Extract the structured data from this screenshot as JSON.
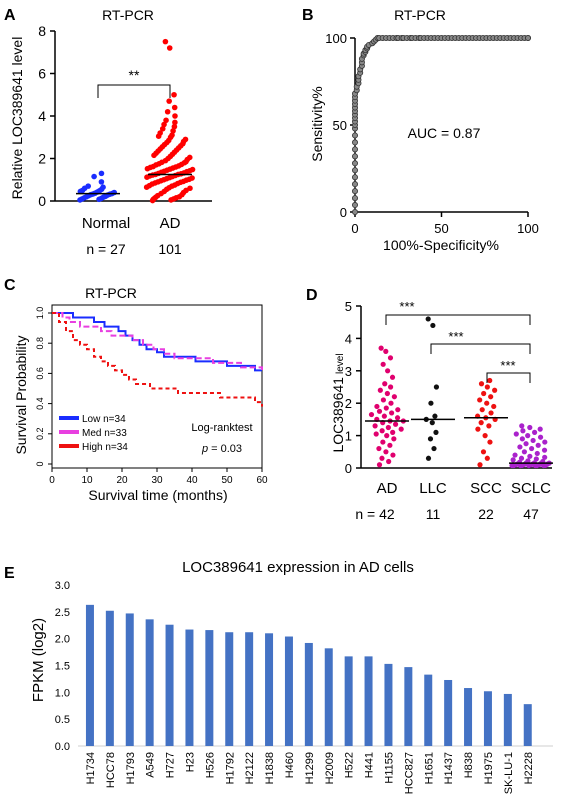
{
  "panels": {
    "A": {
      "letter": "A",
      "chart_data": {
        "type": "scatter",
        "title": "RT-PCR",
        "ylabel": "Relative LOC389641 level",
        "ylim": [
          0,
          8
        ],
        "yticks": [
          "0",
          "2",
          "4",
          "6",
          "8"
        ],
        "categories": [
          "Normal",
          "AD"
        ],
        "n_labels": [
          "n = 27",
          "101"
        ],
        "medians": [
          0.35,
          1.25
        ],
        "significance": "**",
        "colors": {
          "Normal": "#1a2dff",
          "AD": "#ff0000"
        },
        "series": [
          {
            "values": [
              0.05,
              0.08,
              0.1,
              0.12,
              0.15,
              0.18,
              0.2,
              0.22,
              0.25,
              0.28,
              0.3,
              0.32,
              0.33,
              0.35,
              0.37,
              0.4,
              0.42,
              0.45,
              0.48,
              0.5,
              0.55,
              0.6,
              0.65,
              0.7,
              0.9,
              1.15,
              1.3
            ]
          },
          {
            "values": [
              0.02,
              0.05,
              0.08,
              0.1,
              0.12,
              0.15,
              0.18,
              0.2,
              0.25,
              0.3,
              0.35,
              0.4,
              0.45,
              0.5,
              0.55,
              0.6,
              0.62,
              0.65,
              0.7,
              0.72,
              0.75,
              0.8,
              0.82,
              0.85,
              0.88,
              0.9,
              0.92,
              0.95,
              0.98,
              1.0,
              1.02,
              1.05,
              1.08,
              1.1,
              1.12,
              1.15,
              1.18,
              1.2,
              1.22,
              1.25,
              1.25,
              1.28,
              1.3,
              1.32,
              1.35,
              1.38,
              1.4,
              1.42,
              1.45,
              1.48,
              1.5,
              1.52,
              1.55,
              1.58,
              1.6,
              1.62,
              1.65,
              1.7,
              1.72,
              1.75,
              1.8,
              1.82,
              1.85,
              1.9,
              1.95,
              2.0,
              2.05,
              2.1,
              2.15,
              2.2,
              2.25,
              2.3,
              2.35,
              2.4,
              2.45,
              2.5,
              2.55,
              2.6,
              2.65,
              2.7,
              2.75,
              2.8,
              2.85,
              2.9,
              3.0,
              3.05,
              3.1,
              3.2,
              3.3,
              3.4,
              3.5,
              3.6,
              3.7,
              3.8,
              4.0,
              4.2,
              4.4,
              4.7,
              5.0,
              7.2,
              7.5
            ]
          }
        ]
      }
    },
    "B": {
      "letter": "B",
      "chart_data": {
        "type": "line",
        "title": "RT-PCR",
        "xlabel": "100%-Specificity%",
        "ylabel": "Sensitivity%",
        "xlim": [
          0,
          100
        ],
        "ylim": [
          0,
          100
        ],
        "xticks": [
          "0",
          "50",
          "100"
        ],
        "yticks": [
          "0",
          "50",
          "100"
        ],
        "annotation": "AUC = 0.87",
        "color": "#555555",
        "x": [
          0,
          0,
          0,
          0,
          0,
          0,
          0,
          0,
          0,
          0,
          0,
          0,
          0,
          0,
          0,
          0,
          0,
          0,
          0,
          0,
          0,
          0,
          0,
          1,
          1,
          2,
          2,
          2,
          3,
          3,
          4,
          4,
          4,
          5,
          5,
          6,
          6,
          7,
          7,
          8,
          10,
          11,
          12,
          13,
          14,
          16,
          18,
          20,
          22,
          24,
          25,
          27,
          28,
          30,
          32,
          33,
          35,
          37,
          38,
          40,
          42,
          44,
          46,
          48,
          50,
          52,
          54,
          56,
          58,
          60,
          62,
          64,
          66,
          68,
          70,
          72,
          74,
          76,
          78,
          80,
          82,
          84,
          86,
          88,
          90,
          92,
          94,
          96,
          98,
          100,
          100
        ],
        "y": [
          0,
          4,
          8,
          12,
          16,
          20,
          24,
          28,
          32,
          36,
          40,
          44,
          48,
          50,
          52,
          54,
          56,
          58,
          60,
          62,
          64,
          66,
          68,
          70,
          72,
          74,
          76,
          78,
          80,
          82,
          84,
          86,
          88,
          90,
          91,
          92,
          93,
          94,
          95,
          96,
          97,
          98,
          99,
          100,
          100,
          100,
          100,
          100,
          100,
          100,
          100,
          100,
          100,
          100,
          100,
          100,
          100,
          100,
          100,
          100,
          100,
          100,
          100,
          100,
          100,
          100,
          100,
          100,
          100,
          100,
          100,
          100,
          100,
          100,
          100,
          100,
          100,
          100,
          100,
          100,
          100,
          100,
          100,
          100,
          100,
          100,
          100,
          100,
          100,
          100,
          100
        ]
      }
    },
    "C": {
      "letter": "C",
      "chart_data": {
        "type": "line",
        "title": "RT-PCR",
        "xlabel": "Survival time (months)",
        "ylabel": "Survival Probability",
        "xlim": [
          0,
          60
        ],
        "ylim": [
          0,
          1
        ],
        "xticks": [
          "0",
          "10",
          "20",
          "30",
          "40",
          "50",
          "60"
        ],
        "yticks": [
          "0",
          "0.2",
          "0.4",
          "0.6",
          "0.8",
          "1.0"
        ],
        "annotation_test": "Log-ranktest",
        "annotation_p_prefix": "p",
        "annotation_p_value": " = 0.03",
        "legend": "left-bottom",
        "series": [
          {
            "name": "Low n=34",
            "color": "#1a2dff",
            "dash": "",
            "x": [
              0,
              4,
              6,
              9,
              12,
              15,
              17,
              19,
              21,
              23,
              25,
              27,
              30,
              32,
              35,
              38,
              41,
              44,
              47,
              50,
              53,
              56,
              58,
              60
            ],
            "y": [
              1.0,
              1.0,
              0.97,
              0.97,
              0.94,
              0.91,
              0.91,
              0.88,
              0.85,
              0.82,
              0.79,
              0.76,
              0.74,
              0.71,
              0.71,
              0.71,
              0.68,
              0.68,
              0.68,
              0.65,
              0.65,
              0.65,
              0.62,
              0.62
            ]
          },
          {
            "name": "Med n=33",
            "color": "#e83fe0",
            "dash": "6,3",
            "x": [
              0,
              3,
              5,
              8,
              11,
              14,
              17,
              20,
              23,
              26,
              29,
              32,
              35,
              38,
              42,
              46,
              50,
              54,
              58,
              60
            ],
            "y": [
              1.0,
              0.97,
              0.94,
              0.91,
              0.91,
              0.88,
              0.85,
              0.85,
              0.82,
              0.79,
              0.76,
              0.73,
              0.7,
              0.7,
              0.7,
              0.67,
              0.67,
              0.64,
              0.64,
              0.61
            ]
          },
          {
            "name": "High n=34",
            "color": "#ee1111",
            "dash": "4,3",
            "x": [
              0,
              2,
              4,
              6,
              8,
              10,
              12,
              14,
              16,
              18,
              20,
              22,
              24,
              26,
              28,
              30,
              33,
              36,
              40,
              44,
              48,
              52,
              55,
              58,
              60
            ],
            "y": [
              1.0,
              0.94,
              0.88,
              0.82,
              0.79,
              0.76,
              0.71,
              0.68,
              0.65,
              0.62,
              0.59,
              0.56,
              0.53,
              0.53,
              0.5,
              0.5,
              0.5,
              0.47,
              0.47,
              0.47,
              0.44,
              0.44,
              0.44,
              0.41,
              0.38
            ]
          }
        ]
      }
    },
    "D": {
      "letter": "D",
      "chart_data": {
        "type": "scatter",
        "ylabel_main": "LOC389641",
        "ylabel_sub": "level",
        "ylim": [
          0,
          5
        ],
        "yticks": [
          "0",
          "1",
          "2",
          "3",
          "4",
          "5"
        ],
        "categories": [
          "AD",
          "LLC",
          "SCC",
          "SCLC"
        ],
        "n_labels": [
          "n = 42",
          "11",
          "22",
          "47"
        ],
        "medians": [
          1.45,
          1.5,
          1.55,
          0.15
        ],
        "significance": [
          "***",
          "***",
          "***"
        ],
        "colors": [
          "#e0006e",
          "#111111",
          "#ee1111",
          "#aa22cc"
        ],
        "series": [
          {
            "values": [
              0.1,
              0.2,
              0.3,
              0.4,
              0.5,
              0.6,
              0.7,
              0.8,
              0.9,
              1.0,
              1.05,
              1.1,
              1.15,
              1.2,
              1.25,
              1.3,
              1.35,
              1.4,
              1.45,
              1.45,
              1.5,
              1.55,
              1.6,
              1.65,
              1.7,
              1.75,
              1.8,
              1.85,
              1.9,
              2.0,
              2.1,
              2.2,
              2.3,
              2.4,
              2.5,
              2.6,
              2.8,
              3.0,
              3.2,
              3.4,
              3.6,
              3.7
            ]
          },
          {
            "values": [
              0.3,
              0.6,
              0.9,
              1.1,
              1.4,
              1.5,
              1.6,
              2.0,
              2.5,
              4.4,
              4.6
            ]
          },
          {
            "values": [
              0.1,
              0.3,
              0.5,
              0.8,
              1.0,
              1.2,
              1.3,
              1.4,
              1.5,
              1.55,
              1.6,
              1.7,
              1.8,
              1.9,
              2.0,
              2.1,
              2.2,
              2.3,
              2.4,
              2.5,
              2.6,
              2.7
            ]
          },
          {
            "values": [
              0.02,
              0.03,
              0.04,
              0.05,
              0.05,
              0.06,
              0.07,
              0.08,
              0.08,
              0.09,
              0.1,
              0.1,
              0.11,
              0.12,
              0.12,
              0.13,
              0.14,
              0.15,
              0.15,
              0.16,
              0.18,
              0.2,
              0.22,
              0.25,
              0.28,
              0.3,
              0.33,
              0.36,
              0.4,
              0.45,
              0.5,
              0.55,
              0.6,
              0.65,
              0.7,
              0.75,
              0.8,
              0.85,
              0.9,
              0.95,
              1.0,
              1.05,
              1.1,
              1.15,
              1.2,
              1.25,
              1.3
            ]
          }
        ]
      }
    },
    "E": {
      "letter": "E",
      "chart_data": {
        "type": "bar",
        "title": "LOC389641 expression in AD cells",
        "ylabel": "FPKM (log2)",
        "ylim": [
          0,
          3.0
        ],
        "yticks": [
          "0.0",
          "0.5",
          "1.0",
          "1.5",
          "2.0",
          "2.5",
          "3.0"
        ],
        "color": "#4472c4",
        "categories": [
          "H1734",
          "HCC78",
          "H1793",
          "A549",
          "H727",
          "H23",
          "H526",
          "H1792",
          "H2122",
          "H1838",
          "H460",
          "H1299",
          "H2009",
          "H522",
          "H441",
          "H1155",
          "HCC827",
          "H1651",
          "H1437",
          "H838",
          "H1975",
          "SK-LU-1",
          "H2228"
        ],
        "values": [
          2.63,
          2.52,
          2.47,
          2.36,
          2.26,
          2.17,
          2.16,
          2.12,
          2.12,
          2.1,
          2.04,
          1.92,
          1.82,
          1.67,
          1.67,
          1.53,
          1.47,
          1.33,
          1.23,
          1.08,
          1.02,
          0.97,
          0.78
        ]
      }
    }
  }
}
